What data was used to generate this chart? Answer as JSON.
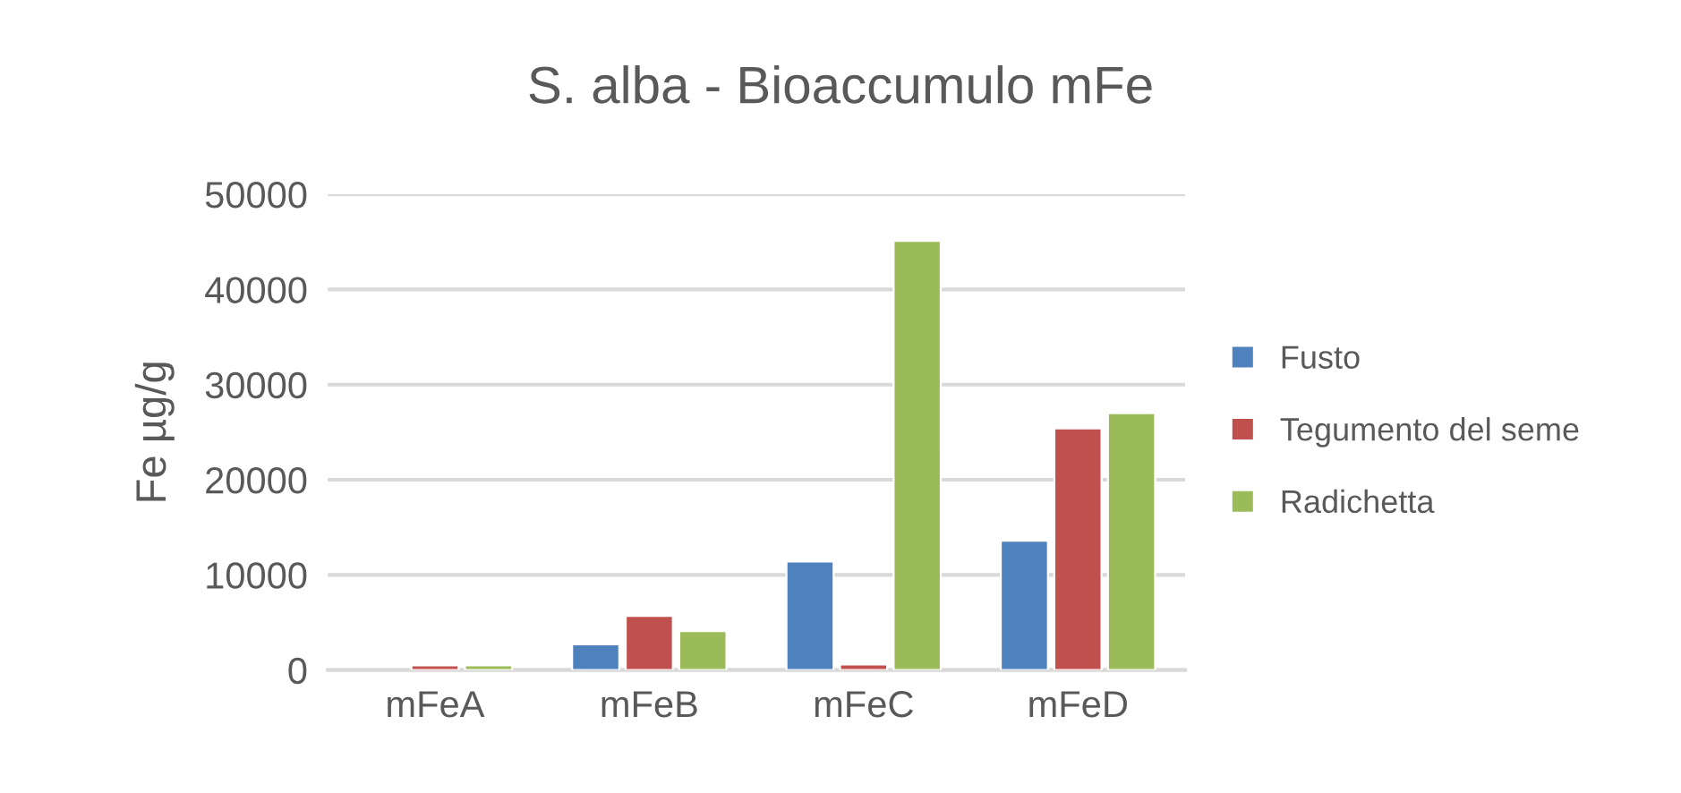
{
  "chart_data": {
    "type": "bar",
    "title": "S. alba - Bioaccumulo mFe",
    "ylabel": "Fe µg/g",
    "categories": [
      "mFeA",
      "mFeB",
      "mFeC",
      "mFeD"
    ],
    "series": [
      {
        "name": "Fusto",
        "color": "#4f81bd",
        "values": [
          null,
          2700,
          11400,
          13600
        ]
      },
      {
        "name": "Tegumento del seme",
        "color": "#c0504d",
        "values": [
          500,
          5700,
          600,
          25400
        ]
      },
      {
        "name": "Radichetta",
        "color": "#9bbb59",
        "values": [
          500,
          4100,
          45100,
          27000
        ]
      }
    ],
    "ylim": [
      0,
      50000
    ],
    "yticks": [
      0,
      10000,
      20000,
      30000,
      40000,
      50000
    ],
    "grid": "y",
    "legend": "right"
  }
}
